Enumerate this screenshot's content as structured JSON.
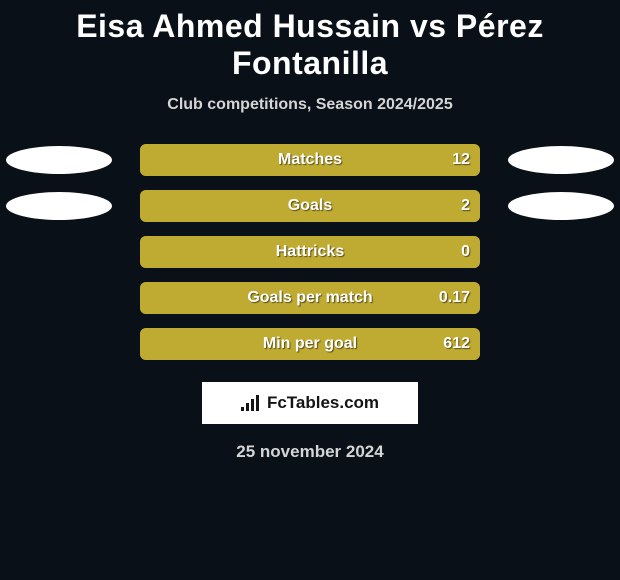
{
  "background_color": "#0a1018",
  "title": {
    "player1": "Eisa Ahmed Hussain",
    "vs": "vs",
    "player2": "Pérez Fontanilla",
    "color": "#ffffff",
    "fontsize": 32
  },
  "subtitle": {
    "text": "Club competitions, Season 2024/2025",
    "color": "#d5d5d5",
    "fontsize": 16
  },
  "bars": {
    "track_color": "#a69327",
    "fill_color": "#c0ab32",
    "label_color": "#ffffff",
    "value_color": "#ffffff",
    "label_fontsize": 16,
    "value_fontsize": 16,
    "border_radius": 6,
    "track_width": 340,
    "track_height": 32
  },
  "ellipse": {
    "width": 106,
    "height": 28,
    "color_left": "#ffffff",
    "color_right": "#ffffff"
  },
  "rows": [
    {
      "label": "Matches",
      "value": "12",
      "fill_pct": 100,
      "show_left_ellipse": true,
      "show_right_ellipse": true
    },
    {
      "label": "Goals",
      "value": "2",
      "fill_pct": 100,
      "show_left_ellipse": true,
      "show_right_ellipse": true
    },
    {
      "label": "Hattricks",
      "value": "0",
      "fill_pct": 100,
      "show_left_ellipse": false,
      "show_right_ellipse": false
    },
    {
      "label": "Goals per match",
      "value": "0.17",
      "fill_pct": 100,
      "show_left_ellipse": false,
      "show_right_ellipse": false
    },
    {
      "label": "Min per goal",
      "value": "612",
      "fill_pct": 100,
      "show_left_ellipse": false,
      "show_right_ellipse": false
    }
  ],
  "logo": {
    "text": "FcTables.com",
    "bg_color": "#ffffff",
    "text_color": "#141414",
    "fontsize": 17,
    "icon_bars": [
      4,
      8,
      12,
      16
    ]
  },
  "date": {
    "text": "25 november 2024",
    "color": "#d5d5d5",
    "fontsize": 17
  }
}
